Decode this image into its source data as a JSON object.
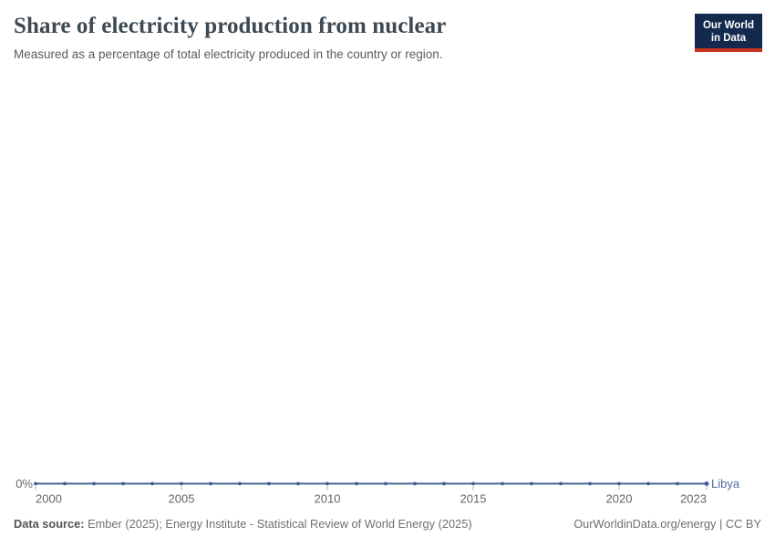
{
  "header": {
    "title": "Share of electricity production from nuclear",
    "subtitle": "Measured as a percentage of total electricity produced in the country or region.",
    "logo": {
      "line1": "Our World",
      "line2": "in Data",
      "bg_color": "#132a4e",
      "accent_color": "#c9321f"
    }
  },
  "chart_data": {
    "type": "line",
    "title": "Share of electricity production from nuclear",
    "xlabel": "",
    "ylabel": "",
    "grid": false,
    "legend_position": "end-of-line",
    "xlim": [
      2000,
      2023
    ],
    "x": [
      2000,
      2001,
      2002,
      2003,
      2004,
      2005,
      2006,
      2007,
      2008,
      2009,
      2010,
      2011,
      2012,
      2013,
      2014,
      2015,
      2016,
      2017,
      2018,
      2019,
      2020,
      2021,
      2022,
      2023
    ],
    "series": [
      {
        "name": "Libya",
        "color": "#4C6A9C",
        "marker_color": "#3e5f99",
        "values": [
          0,
          0,
          0,
          0,
          0,
          0,
          0,
          0,
          0,
          0,
          0,
          0,
          0,
          0,
          0,
          0,
          0,
          0,
          0,
          0,
          0,
          0,
          0,
          0
        ]
      }
    ],
    "x_ticks": [
      2000,
      2005,
      2010,
      2015,
      2020,
      2023
    ],
    "y_ticks": [
      "0%"
    ]
  },
  "footer": {
    "source_label": "Data source:",
    "source_text": " Ember (2025); Energy Institute - Statistical Review of World Energy (2025)",
    "credit": "OurWorldinData.org/energy | CC BY"
  }
}
